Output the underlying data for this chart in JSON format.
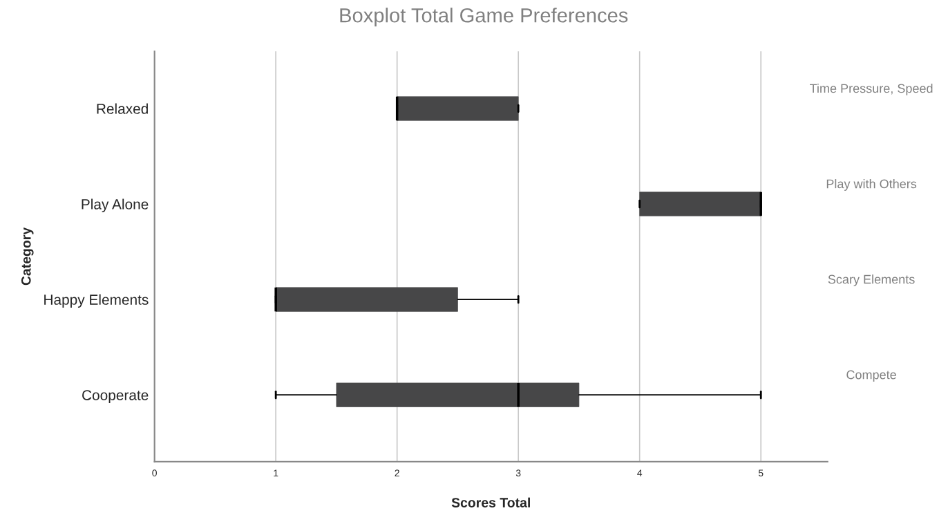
{
  "chart_data": {
    "type": "box",
    "orientation": "horizontal",
    "title": "Boxplot Total Game Preferences",
    "xlabel": "Scores Total",
    "ylabel": "Category",
    "categories": [
      "Relaxed",
      "Play Alone",
      "Happy Elements",
      "Cooperate"
    ],
    "boxes": [
      {
        "low": 2,
        "q1": 2,
        "median": 2,
        "q3": 3,
        "high": 3
      },
      {
        "low": 4,
        "q1": 4,
        "median": 5,
        "q3": 5,
        "high": 5
      },
      {
        "low": 1,
        "q1": 1,
        "median": 1,
        "q3": 2.5,
        "high": 3
      },
      {
        "low": 1,
        "q1": 1.5,
        "median": 3,
        "q3": 3.5,
        "high": 5
      }
    ],
    "color": "#474748",
    "xlim": [
      0,
      5.55
    ],
    "xticks": [
      0,
      1,
      2,
      3,
      4,
      5
    ],
    "grid": "x",
    "annotations": [
      "Time Pressure, Speed",
      "Play with Others",
      "Scary Elements",
      "Compete"
    ]
  }
}
